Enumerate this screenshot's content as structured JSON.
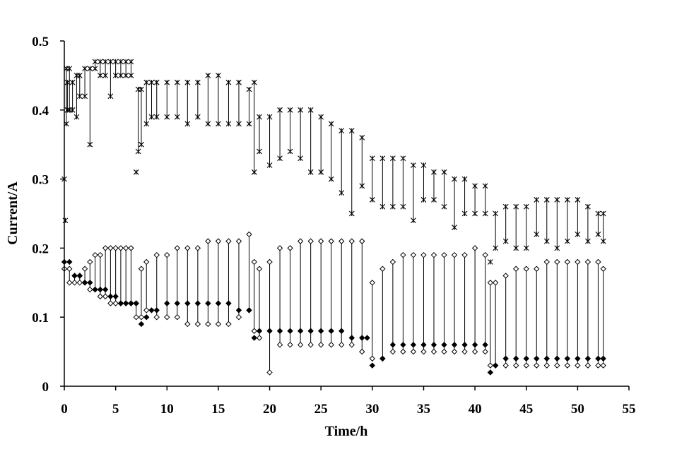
{
  "chart_data": {
    "type": "scatter",
    "title": "",
    "xlabel": "Time/h",
    "ylabel": "Current/A",
    "xlim": [
      0,
      55
    ],
    "ylim": [
      0,
      0.5
    ],
    "xticks": [
      0,
      5,
      10,
      15,
      20,
      25,
      30,
      35,
      40,
      45,
      50,
      55
    ],
    "xtick_labels": [
      "0",
      "5",
      "10",
      "15",
      "20",
      "25",
      "30",
      "35",
      "40",
      "45",
      "50",
      "55"
    ],
    "yticks": [
      0,
      0.1,
      0.2,
      0.3,
      0.4,
      0.5
    ],
    "ytick_labels": [
      "0",
      "0.1",
      "0.2",
      "0.3",
      "0.4",
      "0.5"
    ],
    "grid": false,
    "legend": "none",
    "series_style": [
      {
        "marker": "asterisk",
        "color": "#000000"
      },
      {
        "marker": "diamond-open",
        "color": "#000000"
      },
      {
        "marker": "diamond-filled",
        "color": "#000000"
      }
    ],
    "series": [
      {
        "x": [
          0,
          0.1,
          0.2,
          0.3,
          0.5,
          0.8,
          1.2,
          1.5,
          2.0,
          2.5,
          3.0,
          3.5,
          4.0,
          4.5,
          5.0,
          5.5,
          6.0,
          6.5,
          7.0,
          7.2,
          7.5,
          8.0,
          8.5,
          9.0,
          10.0,
          11.0,
          12.0,
          13.0,
          14.0,
          15.0,
          16.0,
          17.0,
          18.0,
          18.5,
          19.0,
          20.0,
          21.0,
          22.0,
          23.0,
          24.0,
          25.0,
          26.0,
          27.0,
          28.0,
          29.0,
          30.0,
          31.0,
          32.0,
          33.0,
          34.0,
          35.0,
          36.0,
          37.0,
          38.0,
          39.0,
          40.0,
          41.0,
          41.5,
          42.0,
          43.0,
          44.0,
          45.0,
          46.0,
          47.0,
          48.0,
          49.0,
          50.0,
          51.0,
          52.0,
          52.5
        ],
        "y": [
          0.3,
          0.24,
          0.46,
          0.44,
          0.46,
          0.44,
          0.45,
          0.45,
          0.46,
          0.46,
          0.47,
          0.47,
          0.47,
          0.47,
          0.47,
          0.47,
          0.47,
          0.47,
          0.31,
          0.43,
          0.43,
          0.44,
          0.44,
          0.44,
          0.44,
          0.44,
          0.44,
          0.44,
          0.45,
          0.45,
          0.44,
          0.44,
          0.43,
          0.44,
          0.39,
          0.39,
          0.4,
          0.4,
          0.4,
          0.4,
          0.39,
          0.38,
          0.37,
          0.37,
          0.36,
          0.33,
          0.33,
          0.33,
          0.33,
          0.32,
          0.32,
          0.31,
          0.31,
          0.3,
          0.3,
          0.29,
          0.29,
          0.18,
          0.25,
          0.26,
          0.26,
          0.26,
          0.27,
          0.27,
          0.27,
          0.27,
          0.27,
          0.26,
          0.25,
          0.25
        ],
        "y_low": [
          0.3,
          0.24,
          0.38,
          0.4,
          0.4,
          0.4,
          0.39,
          0.42,
          0.42,
          0.35,
          0.46,
          0.45,
          0.45,
          0.42,
          0.45,
          0.45,
          0.45,
          0.45,
          0.31,
          0.34,
          0.35,
          0.38,
          0.39,
          0.39,
          0.39,
          0.39,
          0.38,
          0.39,
          0.38,
          0.38,
          0.38,
          0.38,
          0.38,
          0.31,
          0.34,
          0.32,
          0.33,
          0.34,
          0.33,
          0.31,
          0.31,
          0.3,
          0.28,
          0.25,
          0.29,
          0.27,
          0.26,
          0.26,
          0.26,
          0.24,
          0.27,
          0.27,
          0.26,
          0.23,
          0.25,
          0.25,
          0.25,
          0.18,
          0.2,
          0.21,
          0.2,
          0.2,
          0.22,
          0.21,
          0.2,
          0.21,
          0.22,
          0.21,
          0.22,
          0.21
        ]
      },
      {
        "x": [
          0,
          0.5,
          1.0,
          1.5,
          2.0,
          2.5,
          3.0,
          3.5,
          4.0,
          4.5,
          5.0,
          5.5,
          6.0,
          6.5,
          7.0,
          7.5,
          8.0,
          9.0,
          10.0,
          11.0,
          12.0,
          13.0,
          14.0,
          15.0,
          16.0,
          17.0,
          18.0,
          18.5,
          19.0,
          20.0,
          21.0,
          22.0,
          23.0,
          24.0,
          25.0,
          26.0,
          27.0,
          28.0,
          29.0,
          30.0,
          31.0,
          32.0,
          33.0,
          34.0,
          35.0,
          36.0,
          37.0,
          38.0,
          39.0,
          40.0,
          41.0,
          41.5,
          42.0,
          43.0,
          44.0,
          45.0,
          46.0,
          47.0,
          48.0,
          49.0,
          50.0,
          51.0,
          52.0,
          52.5
        ],
        "y": [
          0.17,
          0.17,
          0.16,
          0.16,
          0.17,
          0.18,
          0.19,
          0.19,
          0.2,
          0.2,
          0.2,
          0.2,
          0.2,
          0.2,
          0.12,
          0.17,
          0.18,
          0.19,
          0.19,
          0.2,
          0.2,
          0.2,
          0.21,
          0.21,
          0.21,
          0.21,
          0.22,
          0.18,
          0.17,
          0.18,
          0.2,
          0.2,
          0.21,
          0.21,
          0.21,
          0.21,
          0.21,
          0.21,
          0.21,
          0.15,
          0.17,
          0.18,
          0.19,
          0.19,
          0.19,
          0.19,
          0.19,
          0.19,
          0.19,
          0.2,
          0.19,
          0.15,
          0.15,
          0.16,
          0.17,
          0.17,
          0.17,
          0.18,
          0.18,
          0.18,
          0.18,
          0.18,
          0.18,
          0.17
        ],
        "y_low": [
          0.17,
          0.15,
          0.15,
          0.15,
          0.15,
          0.14,
          0.14,
          0.13,
          0.13,
          0.12,
          0.12,
          0.12,
          0.12,
          0.12,
          0.1,
          0.1,
          0.11,
          0.1,
          0.1,
          0.1,
          0.09,
          0.09,
          0.09,
          0.09,
          0.09,
          0.1,
          0.11,
          0.08,
          0.07,
          0.02,
          0.06,
          0.06,
          0.06,
          0.06,
          0.06,
          0.06,
          0.06,
          0.06,
          0.05,
          0.04,
          0.04,
          0.05,
          0.05,
          0.05,
          0.05,
          0.05,
          0.05,
          0.05,
          0.05,
          0.05,
          0.05,
          0.03,
          0.03,
          0.03,
          0.03,
          0.03,
          0.03,
          0.03,
          0.03,
          0.03,
          0.03,
          0.03,
          0.03,
          0.03
        ]
      },
      {
        "x": [
          0,
          0.5,
          1.0,
          1.5,
          2.0,
          2.5,
          3.0,
          3.5,
          4.0,
          4.5,
          5.0,
          5.5,
          6.0,
          6.5,
          7.0,
          7.5,
          8.0,
          8.5,
          9.0,
          10.0,
          11.0,
          12.0,
          13.0,
          14.0,
          15.0,
          16.0,
          17.0,
          18.0,
          18.5,
          19.0,
          20.0,
          21.0,
          22.0,
          23.0,
          24.0,
          25.0,
          26.0,
          27.0,
          28.0,
          29.0,
          29.5,
          30.0,
          31.0,
          32.0,
          33.0,
          34.0,
          35.0,
          36.0,
          37.0,
          38.0,
          39.0,
          40.0,
          41.0,
          41.5,
          42.0,
          43.0,
          44.0,
          45.0,
          46.0,
          47.0,
          48.0,
          49.0,
          50.0,
          51.0,
          52.0,
          52.5
        ],
        "y": [
          0.18,
          0.18,
          0.16,
          0.16,
          0.15,
          0.15,
          0.14,
          0.14,
          0.14,
          0.13,
          0.13,
          0.12,
          0.12,
          0.12,
          0.12,
          0.09,
          0.1,
          0.11,
          0.11,
          0.12,
          0.12,
          0.12,
          0.12,
          0.12,
          0.12,
          0.12,
          0.11,
          0.11,
          0.07,
          0.08,
          0.08,
          0.08,
          0.08,
          0.08,
          0.08,
          0.08,
          0.08,
          0.08,
          0.07,
          0.07,
          0.07,
          0.03,
          0.04,
          0.06,
          0.06,
          0.06,
          0.06,
          0.06,
          0.06,
          0.06,
          0.06,
          0.06,
          0.06,
          0.02,
          0.03,
          0.04,
          0.04,
          0.04,
          0.04,
          0.04,
          0.04,
          0.04,
          0.04,
          0.04,
          0.04,
          0.04
        ]
      }
    ]
  }
}
